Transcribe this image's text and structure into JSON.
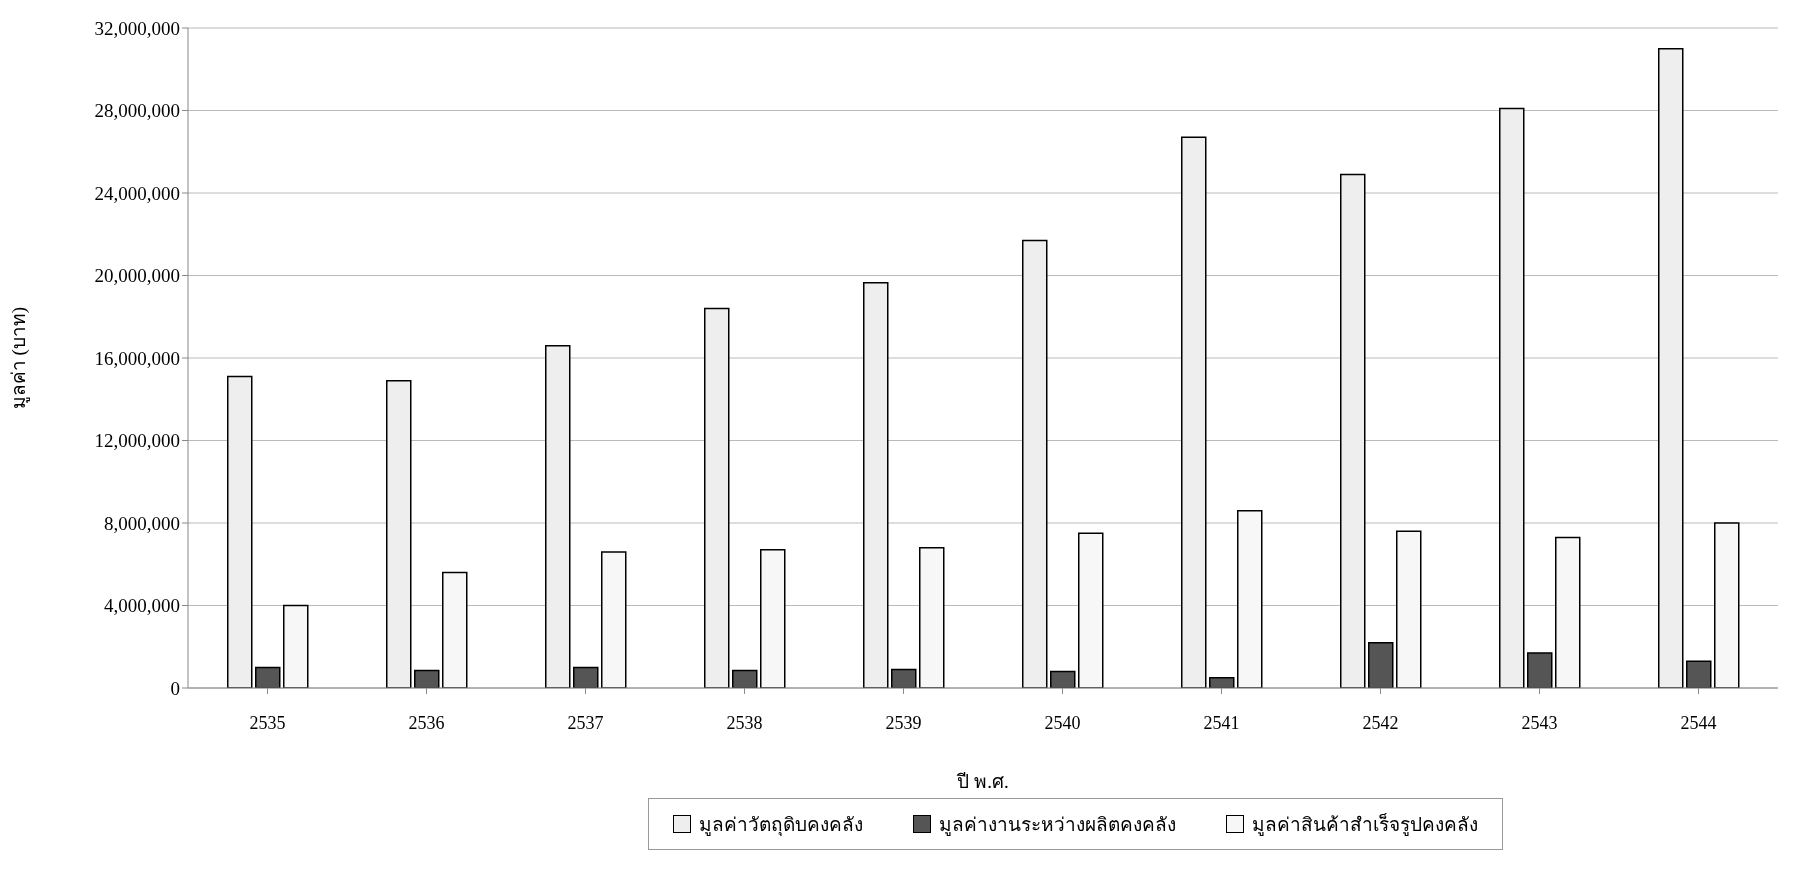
{
  "chart_data": {
    "type": "bar",
    "xlabel": "ปี พ.ศ.",
    "ylabel": "มูลค่า (บาท)",
    "categories": [
      "2535",
      "2536",
      "2537",
      "2538",
      "2539",
      "2540",
      "2541",
      "2542",
      "2543",
      "2544"
    ],
    "series": [
      {
        "name": "มูลค่าวัตถุดิบคงคลัง",
        "color": "#eeeeee",
        "values": [
          15100000,
          14900000,
          16600000,
          18400000,
          19650000,
          21700000,
          26700000,
          24900000,
          28100000,
          31000000
        ]
      },
      {
        "name": "มูลค่างานระหว่างผลิตคงคลัง",
        "color": "#555555",
        "values": [
          1000000,
          850000,
          1000000,
          850000,
          900000,
          800000,
          500000,
          2200000,
          1700000,
          1300000
        ]
      },
      {
        "name": "มูลค่าสินค้าสำเร็จรูปคงคลัง",
        "color": "#f7f7f7",
        "values": [
          4000000,
          5600000,
          6600000,
          6700000,
          6800000,
          7500000,
          8600000,
          7600000,
          7300000,
          8000000
        ]
      }
    ],
    "ylim": [
      0,
      32000000
    ],
    "yticks": [
      0,
      {
        "value": 4000000,
        "label": "4,000,000"
      },
      {
        "value": 8000000,
        "label": "8,000,000"
      },
      {
        "value": 12000000,
        "label": "12,000,000"
      },
      {
        "value": 16000000,
        "label": "16,000,000"
      },
      {
        "value": 20000000,
        "label": "20,000,000"
      },
      {
        "value": 24000000,
        "label": "24,000,000"
      },
      {
        "value": 28000000,
        "label": "28,000,000"
      },
      {
        "value": 32000000,
        "label": "32,000,000"
      }
    ],
    "grid": "y",
    "legend": "bottom"
  }
}
